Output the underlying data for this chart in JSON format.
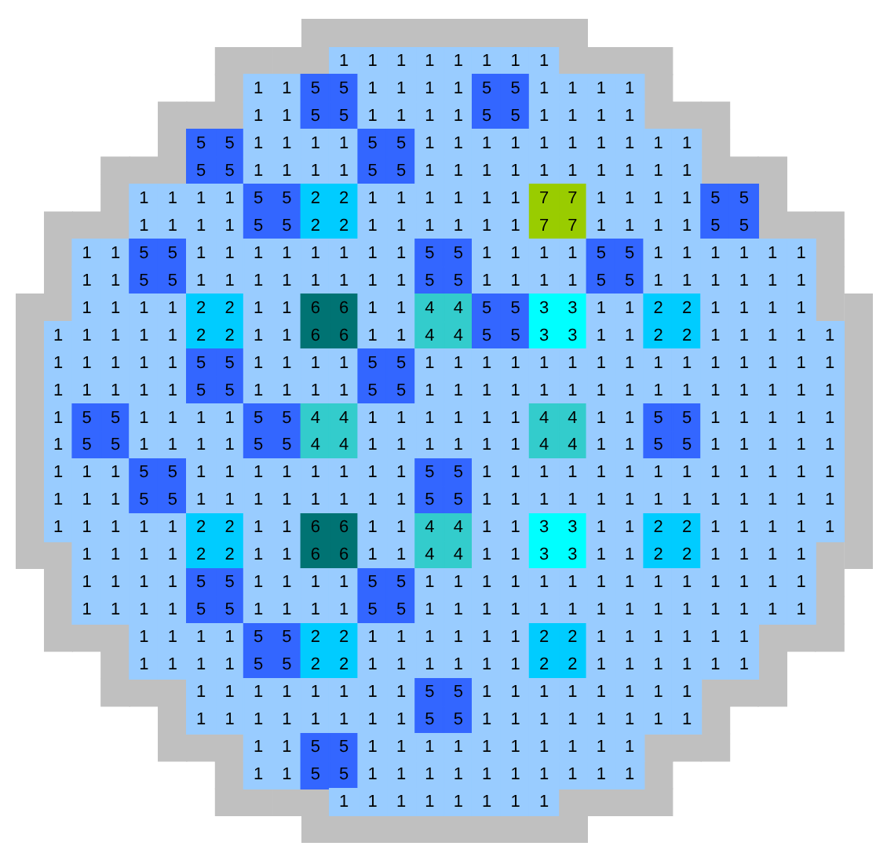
{
  "chart_data": {
    "type": "heatmap",
    "categories": [
      null,
      null,
      null,
      null,
      null,
      null,
      null,
      null,
      null,
      null,
      null,
      null,
      null,
      null,
      null,
      null,
      null,
      null,
      null,
      null,
      null,
      null,
      null,
      null,
      null,
      null,
      null,
      null
    ],
    "y_categories": [
      null,
      null,
      null,
      null,
      null,
      null,
      null,
      null,
      null,
      null,
      null,
      null,
      null,
      null,
      null,
      null,
      null,
      null,
      null,
      null,
      null,
      null,
      null,
      null,
      null,
      null,
      null,
      null
    ],
    "colors": [
      "#99ccff",
      "#00ccff",
      "#00ffff",
      "#33cccc",
      "#3366ff",
      "#007373",
      "#99cc00"
    ],
    "data_labels": true,
    "cells": [
      [
        null,
        null,
        null,
        null,
        null,
        null,
        null,
        null,
        null,
        null,
        1,
        1,
        1,
        1,
        1,
        1,
        1,
        1,
        null,
        null,
        null,
        null,
        null,
        null,
        null,
        null,
        null,
        null
      ],
      [
        null,
        null,
        null,
        null,
        null,
        null,
        null,
        1,
        1,
        5,
        5,
        1,
        1,
        1,
        1,
        5,
        5,
        1,
        1,
        1,
        1,
        null,
        null,
        null,
        null,
        null,
        null,
        null
      ],
      [
        null,
        null,
        null,
        null,
        null,
        null,
        null,
        1,
        1,
        5,
        5,
        1,
        1,
        1,
        1,
        5,
        5,
        1,
        1,
        1,
        1,
        null,
        null,
        null,
        null,
        null,
        null,
        null
      ],
      [
        null,
        null,
        null,
        null,
        null,
        5,
        5,
        1,
        1,
        1,
        1,
        5,
        5,
        1,
        1,
        1,
        1,
        1,
        1,
        1,
        1,
        1,
        1,
        null,
        null,
        null,
        null,
        null
      ],
      [
        null,
        null,
        null,
        null,
        null,
        5,
        5,
        1,
        1,
        1,
        1,
        5,
        5,
        1,
        1,
        1,
        1,
        1,
        1,
        1,
        1,
        1,
        1,
        null,
        null,
        null,
        null,
        null
      ],
      [
        null,
        null,
        null,
        1,
        1,
        1,
        1,
        5,
        5,
        2,
        2,
        1,
        1,
        1,
        1,
        1,
        1,
        7,
        7,
        1,
        1,
        1,
        1,
        5,
        5,
        null,
        null,
        null
      ],
      [
        null,
        null,
        null,
        1,
        1,
        1,
        1,
        5,
        5,
        2,
        2,
        1,
        1,
        1,
        1,
        1,
        1,
        7,
        7,
        1,
        1,
        1,
        1,
        5,
        5,
        null,
        null,
        null
      ],
      [
        null,
        1,
        1,
        5,
        5,
        1,
        1,
        1,
        1,
        1,
        1,
        1,
        1,
        5,
        5,
        1,
        1,
        1,
        1,
        5,
        5,
        1,
        1,
        1,
        1,
        1,
        1,
        null
      ],
      [
        null,
        1,
        1,
        5,
        5,
        1,
        1,
        1,
        1,
        1,
        1,
        1,
        1,
        5,
        5,
        1,
        1,
        1,
        1,
        5,
        5,
        1,
        1,
        1,
        1,
        1,
        1,
        null
      ],
      [
        null,
        1,
        1,
        1,
        1,
        2,
        2,
        1,
        1,
        6,
        6,
        1,
        1,
        4,
        4,
        5,
        5,
        3,
        3,
        1,
        1,
        2,
        2,
        1,
        1,
        1,
        1,
        null
      ],
      [
        1,
        1,
        1,
        1,
        1,
        2,
        2,
        1,
        1,
        6,
        6,
        1,
        1,
        4,
        4,
        5,
        5,
        3,
        3,
        1,
        1,
        2,
        2,
        1,
        1,
        1,
        1,
        1
      ],
      [
        1,
        1,
        1,
        1,
        1,
        5,
        5,
        1,
        1,
        1,
        1,
        5,
        5,
        1,
        1,
        1,
        1,
        1,
        1,
        1,
        1,
        1,
        1,
        1,
        1,
        1,
        1,
        1
      ],
      [
        1,
        1,
        1,
        1,
        1,
        5,
        5,
        1,
        1,
        1,
        1,
        5,
        5,
        1,
        1,
        1,
        1,
        1,
        1,
        1,
        1,
        1,
        1,
        1,
        1,
        1,
        1,
        1
      ],
      [
        1,
        5,
        5,
        1,
        1,
        1,
        1,
        5,
        5,
        4,
        4,
        1,
        1,
        1,
        1,
        1,
        1,
        4,
        4,
        1,
        1,
        5,
        5,
        1,
        1,
        1,
        1,
        1
      ],
      [
        1,
        5,
        5,
        1,
        1,
        1,
        1,
        5,
        5,
        4,
        4,
        1,
        1,
        1,
        1,
        1,
        1,
        4,
        4,
        1,
        1,
        5,
        5,
        1,
        1,
        1,
        1,
        1
      ],
      [
        1,
        1,
        1,
        5,
        5,
        1,
        1,
        1,
        1,
        1,
        1,
        1,
        1,
        5,
        5,
        1,
        1,
        1,
        1,
        1,
        1,
        1,
        1,
        1,
        1,
        1,
        1,
        1
      ],
      [
        1,
        1,
        1,
        5,
        5,
        1,
        1,
        1,
        1,
        1,
        1,
        1,
        1,
        5,
        5,
        1,
        1,
        1,
        1,
        1,
        1,
        1,
        1,
        1,
        1,
        1,
        1,
        1
      ],
      [
        1,
        1,
        1,
        1,
        1,
        2,
        2,
        1,
        1,
        6,
        6,
        1,
        1,
        4,
        4,
        1,
        1,
        3,
        3,
        1,
        1,
        2,
        2,
        1,
        1,
        1,
        1,
        1
      ],
      [
        null,
        1,
        1,
        1,
        1,
        2,
        2,
        1,
        1,
        6,
        6,
        1,
        1,
        4,
        4,
        1,
        1,
        3,
        3,
        1,
        1,
        2,
        2,
        1,
        1,
        1,
        1,
        null
      ],
      [
        null,
        1,
        1,
        1,
        1,
        5,
        5,
        1,
        1,
        1,
        1,
        5,
        5,
        1,
        1,
        1,
        1,
        1,
        1,
        1,
        1,
        1,
        1,
        1,
        1,
        1,
        1,
        null
      ],
      [
        null,
        1,
        1,
        1,
        1,
        5,
        5,
        1,
        1,
        1,
        1,
        5,
        5,
        1,
        1,
        1,
        1,
        1,
        1,
        1,
        1,
        1,
        1,
        1,
        1,
        1,
        1,
        null
      ],
      [
        null,
        null,
        null,
        1,
        1,
        1,
        1,
        5,
        5,
        2,
        2,
        1,
        1,
        1,
        1,
        1,
        1,
        2,
        2,
        1,
        1,
        1,
        1,
        1,
        1,
        null,
        null,
        null
      ],
      [
        null,
        null,
        null,
        1,
        1,
        1,
        1,
        5,
        5,
        2,
        2,
        1,
        1,
        1,
        1,
        1,
        1,
        2,
        2,
        1,
        1,
        1,
        1,
        1,
        1,
        null,
        null,
        null
      ],
      [
        null,
        null,
        null,
        null,
        null,
        1,
        1,
        1,
        1,
        1,
        1,
        1,
        1,
        5,
        5,
        1,
        1,
        1,
        1,
        1,
        1,
        1,
        1,
        null,
        null,
        null,
        null,
        null
      ],
      [
        null,
        null,
        null,
        null,
        null,
        1,
        1,
        1,
        1,
        1,
        1,
        1,
        1,
        5,
        5,
        1,
        1,
        1,
        1,
        1,
        1,
        1,
        1,
        null,
        null,
        null,
        null,
        null
      ],
      [
        null,
        null,
        null,
        null,
        null,
        null,
        null,
        1,
        1,
        5,
        5,
        1,
        1,
        1,
        1,
        1,
        1,
        1,
        1,
        1,
        1,
        null,
        null,
        null,
        null,
        null,
        null,
        null
      ],
      [
        null,
        null,
        null,
        null,
        null,
        null,
        null,
        1,
        1,
        5,
        5,
        1,
        1,
        1,
        1,
        1,
        1,
        1,
        1,
        1,
        1,
        null,
        null,
        null,
        null,
        null,
        null,
        null
      ],
      [
        null,
        null,
        null,
        null,
        null,
        null,
        null,
        null,
        null,
        null,
        1,
        1,
        1,
        1,
        1,
        1,
        1,
        1,
        null,
        null,
        null,
        null,
        null,
        null,
        null,
        null,
        null,
        null
      ]
    ]
  }
}
